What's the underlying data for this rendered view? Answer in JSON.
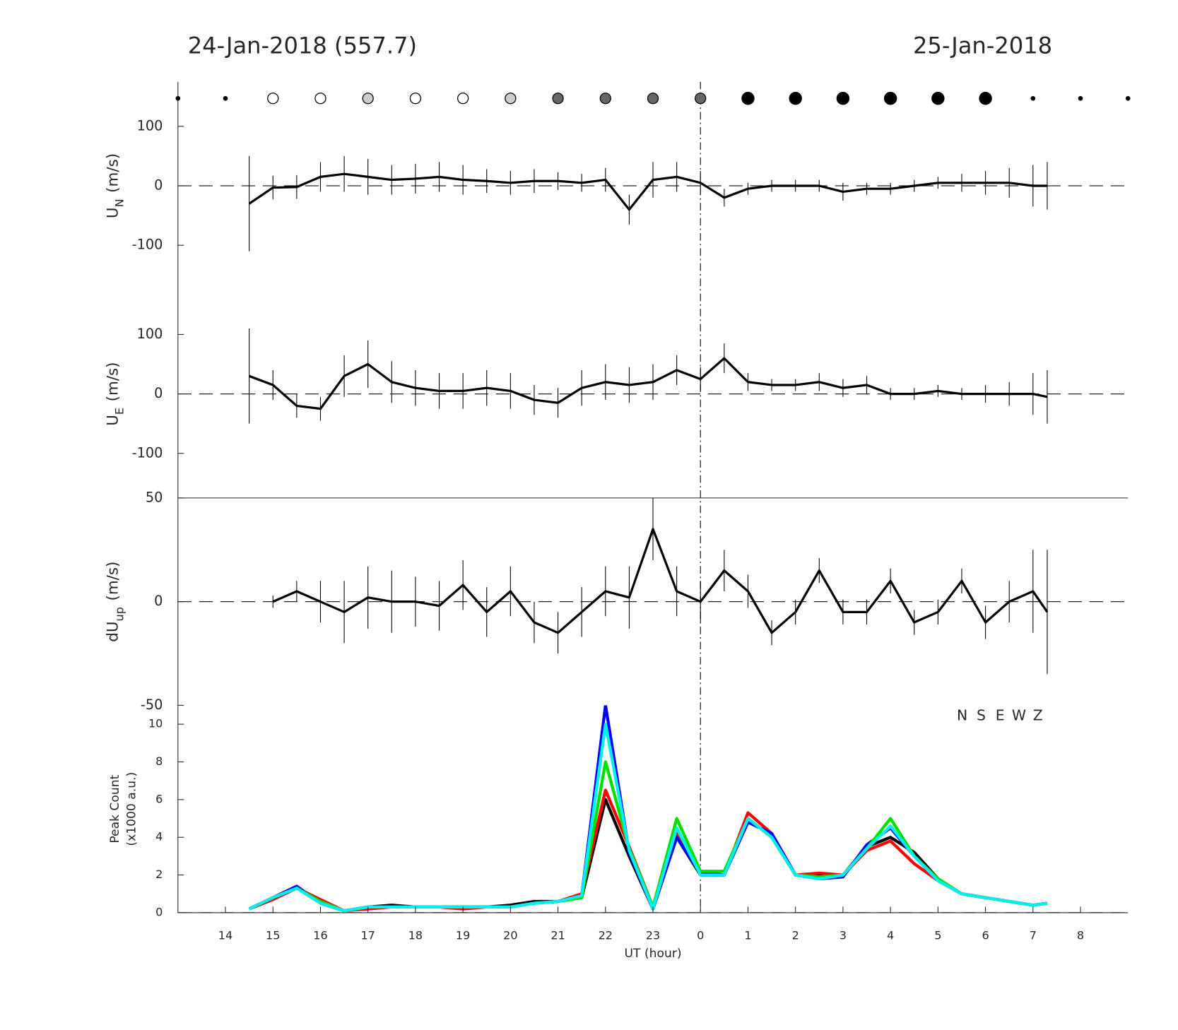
{
  "header": {
    "left": "24-Jan-2018 (557.7)",
    "right": "25-Jan-2018"
  },
  "chart_data": [
    {
      "type": "errorbar",
      "xlim": [
        13,
        33
      ],
      "ylim": [
        -175,
        175
      ],
      "yticks": [
        -100,
        0,
        100
      ],
      "hline": 0,
      "vline": 24,
      "ylabel": {
        "base": "U",
        "sub": "N",
        "unit": "(m/s)"
      },
      "symbols": {
        "x": [
          13,
          14,
          15,
          16,
          17,
          18,
          19,
          20,
          21,
          22,
          23,
          24,
          25,
          26,
          27,
          28,
          29,
          30,
          31,
          32,
          33
        ],
        "kind": [
          "dot",
          "dot",
          "white",
          "white",
          "lightgray",
          "white",
          "white",
          "lightgray",
          "darkgray",
          "darkgray",
          "darkgray",
          "darkgray",
          "black",
          "black",
          "black",
          "black",
          "black",
          "black",
          "dot",
          "dot",
          "dot"
        ]
      },
      "x": [
        14.5,
        15,
        15.5,
        16,
        16.5,
        17,
        17.5,
        18,
        18.5,
        19,
        19.5,
        20,
        20.5,
        21,
        21.5,
        22,
        22.5,
        23,
        23.5,
        24,
        24.5,
        25,
        25.5,
        26,
        26.5,
        27,
        27.5,
        28,
        28.5,
        29,
        29.5,
        30,
        30.5,
        31,
        31.3
      ],
      "series": [
        {
          "color": "#000000",
          "values": [
            -30,
            -3,
            -2,
            15,
            20,
            15,
            10,
            12,
            15,
            10,
            8,
            5,
            8,
            8,
            5,
            10,
            -40,
            10,
            15,
            5,
            -20,
            -5,
            0,
            0,
            0,
            -10,
            -5,
            -5,
            0,
            5,
            5,
            5,
            5,
            0,
            0
          ],
          "errors": [
            80,
            20,
            20,
            25,
            30,
            30,
            25,
            25,
            25,
            25,
            20,
            20,
            20,
            15,
            15,
            20,
            25,
            30,
            25,
            20,
            15,
            10,
            10,
            10,
            10,
            15,
            10,
            10,
            10,
            10,
            15,
            20,
            25,
            35,
            40
          ]
        }
      ]
    },
    {
      "type": "errorbar",
      "xlim": [
        13,
        33
      ],
      "ylim": [
        -175,
        175
      ],
      "yticks": [
        -100,
        0,
        100
      ],
      "hline": 0,
      "ylabel": {
        "base": "U",
        "sub": "E",
        "unit": "(m/s)"
      },
      "x": [
        14.5,
        15,
        15.5,
        16,
        16.5,
        17,
        17.5,
        18,
        18.5,
        19,
        19.5,
        20,
        20.5,
        21,
        21.5,
        22,
        22.5,
        23,
        23.5,
        24,
        24.5,
        25,
        25.5,
        26,
        26.5,
        27,
        27.5,
        28,
        28.5,
        29,
        29.5,
        30,
        30.5,
        31,
        31.3
      ],
      "series": [
        {
          "color": "#000000",
          "values": [
            30,
            15,
            -20,
            -25,
            30,
            50,
            20,
            10,
            5,
            5,
            10,
            5,
            -10,
            -15,
            10,
            20,
            15,
            20,
            40,
            25,
            60,
            20,
            15,
            15,
            20,
            10,
            15,
            0,
            0,
            5,
            0,
            0,
            0,
            0,
            -5
          ],
          "errors": [
            80,
            25,
            20,
            20,
            35,
            40,
            35,
            30,
            30,
            30,
            30,
            30,
            25,
            25,
            30,
            30,
            30,
            30,
            25,
            20,
            25,
            15,
            10,
            10,
            15,
            15,
            15,
            10,
            10,
            10,
            10,
            15,
            20,
            35,
            45
          ]
        }
      ]
    },
    {
      "type": "errorbar",
      "xlim": [
        13,
        33
      ],
      "ylim": [
        -50,
        50
      ],
      "yticks": [
        -50,
        0,
        50
      ],
      "hline": 0,
      "ylabel": {
        "base": "dU",
        "sub": "up",
        "unit": "(m/s)"
      },
      "x": [
        14.5,
        15,
        15.5,
        16,
        16.5,
        17,
        17.5,
        18,
        18.5,
        19,
        19.5,
        20,
        20.5,
        21,
        21.5,
        22,
        22.5,
        23,
        23.5,
        24,
        24.5,
        25,
        25.5,
        26,
        26.5,
        27,
        27.5,
        28,
        28.5,
        29,
        29.5,
        30,
        30.5,
        31,
        31.3
      ],
      "series": [
        {
          "color": "#000000",
          "values": [
            null,
            0,
            5,
            0,
            -5,
            2,
            0,
            0,
            -2,
            8,
            -5,
            5,
            -10,
            -15,
            -5,
            5,
            2,
            35,
            5,
            0,
            15,
            5,
            -15,
            -5,
            15,
            -5,
            -5,
            10,
            -10,
            -5,
            10,
            -10,
            0,
            5,
            -5
          ],
          "errors": [
            null,
            3,
            5,
            10,
            15,
            15,
            15,
            12,
            12,
            12,
            12,
            12,
            10,
            10,
            12,
            12,
            15,
            15,
            12,
            10,
            10,
            8,
            6,
            6,
            6,
            6,
            6,
            6,
            6,
            6,
            6,
            8,
            10,
            20,
            30
          ]
        }
      ]
    },
    {
      "type": "line",
      "xlim": [
        13,
        33
      ],
      "ylim": [
        0,
        11
      ],
      "yticks": [
        0,
        2,
        4,
        6,
        8,
        10
      ],
      "hline": 0,
      "ylabel": [
        "Peak Count",
        "(x1000 a.u.)"
      ],
      "xlabel": "UT (hour)",
      "xticks": [
        14,
        15,
        16,
        17,
        18,
        19,
        20,
        21,
        22,
        23,
        {
          "value": 24,
          "label": "0"
        },
        {
          "value": 25,
          "label": "1"
        },
        {
          "value": 26,
          "label": "2"
        },
        {
          "value": 27,
          "label": "3"
        },
        {
          "value": 28,
          "label": "4"
        },
        {
          "value": 29,
          "label": "5"
        },
        {
          "value": 30,
          "label": "6"
        },
        {
          "value": 31,
          "label": "7"
        },
        {
          "value": 32,
          "label": "8"
        }
      ],
      "x": [
        14.5,
        15,
        15.5,
        16,
        16.5,
        17,
        17.5,
        18,
        18.5,
        19,
        19.5,
        20,
        20.5,
        21,
        21.5,
        22,
        22.5,
        23,
        23.5,
        24,
        24.5,
        25,
        25.5,
        26,
        26.5,
        27,
        27.5,
        28,
        28.5,
        29,
        29.5,
        30,
        30.5,
        31,
        31.3
      ],
      "series": [
        {
          "name": "N",
          "color": "#000000",
          "values": [
            0.2,
            0.8,
            1.4,
            0.5,
            0.1,
            0.3,
            0.4,
            0.3,
            0.3,
            0.3,
            0.3,
            0.4,
            0.6,
            0.6,
            0.8,
            6.0,
            3.0,
            0.2,
            4.0,
            2.0,
            2.0,
            5.0,
            4.0,
            2.0,
            2.0,
            2.0,
            3.5,
            4.0,
            3.2,
            1.8,
            1.0,
            0.8,
            0.6,
            0.4,
            0.5
          ]
        },
        {
          "name": "S",
          "color": "#ff0000",
          "values": [
            0.2,
            0.7,
            1.3,
            0.7,
            0.1,
            0.2,
            0.3,
            0.3,
            0.3,
            0.2,
            0.3,
            0.3,
            0.5,
            0.6,
            1.0,
            6.5,
            3.5,
            0.3,
            4.2,
            2.2,
            2.0,
            5.3,
            4.2,
            2.0,
            2.1,
            2.0,
            3.3,
            3.8,
            2.6,
            1.7,
            1.0,
            0.8,
            0.6,
            0.4,
            0.5
          ]
        },
        {
          "name": "E",
          "color": "#0000ff",
          "values": [
            0.2,
            0.8,
            1.4,
            0.5,
            0.1,
            0.3,
            0.3,
            0.3,
            0.3,
            0.3,
            0.3,
            0.3,
            0.5,
            0.6,
            0.9,
            11.0,
            3.2,
            0.2,
            4.0,
            2.1,
            2.0,
            4.8,
            4.2,
            2.0,
            1.8,
            1.9,
            3.6,
            4.5,
            3.0,
            1.7,
            1.0,
            0.8,
            0.6,
            0.4,
            0.5
          ]
        },
        {
          "name": "W",
          "color": "#00e000",
          "values": [
            0.2,
            0.8,
            1.3,
            0.6,
            0.1,
            0.3,
            0.3,
            0.3,
            0.3,
            0.3,
            0.3,
            0.3,
            0.5,
            0.6,
            0.8,
            8.0,
            3.4,
            0.3,
            5.0,
            2.2,
            2.2,
            5.0,
            4.0,
            2.0,
            1.9,
            2.0,
            3.4,
            5.0,
            3.0,
            1.8,
            1.0,
            0.8,
            0.6,
            0.4,
            0.5
          ]
        },
        {
          "name": "Z",
          "color": "#00f0f0",
          "values": [
            0.2,
            0.8,
            1.3,
            0.5,
            0.1,
            0.3,
            0.3,
            0.3,
            0.3,
            0.3,
            0.3,
            0.3,
            0.5,
            0.6,
            0.9,
            10.0,
            3.3,
            0.2,
            4.5,
            2.0,
            2.0,
            5.0,
            4.0,
            2.0,
            1.8,
            2.0,
            3.4,
            4.6,
            3.0,
            1.7,
            1.0,
            0.8,
            0.6,
            0.4,
            0.5
          ]
        }
      ]
    }
  ]
}
